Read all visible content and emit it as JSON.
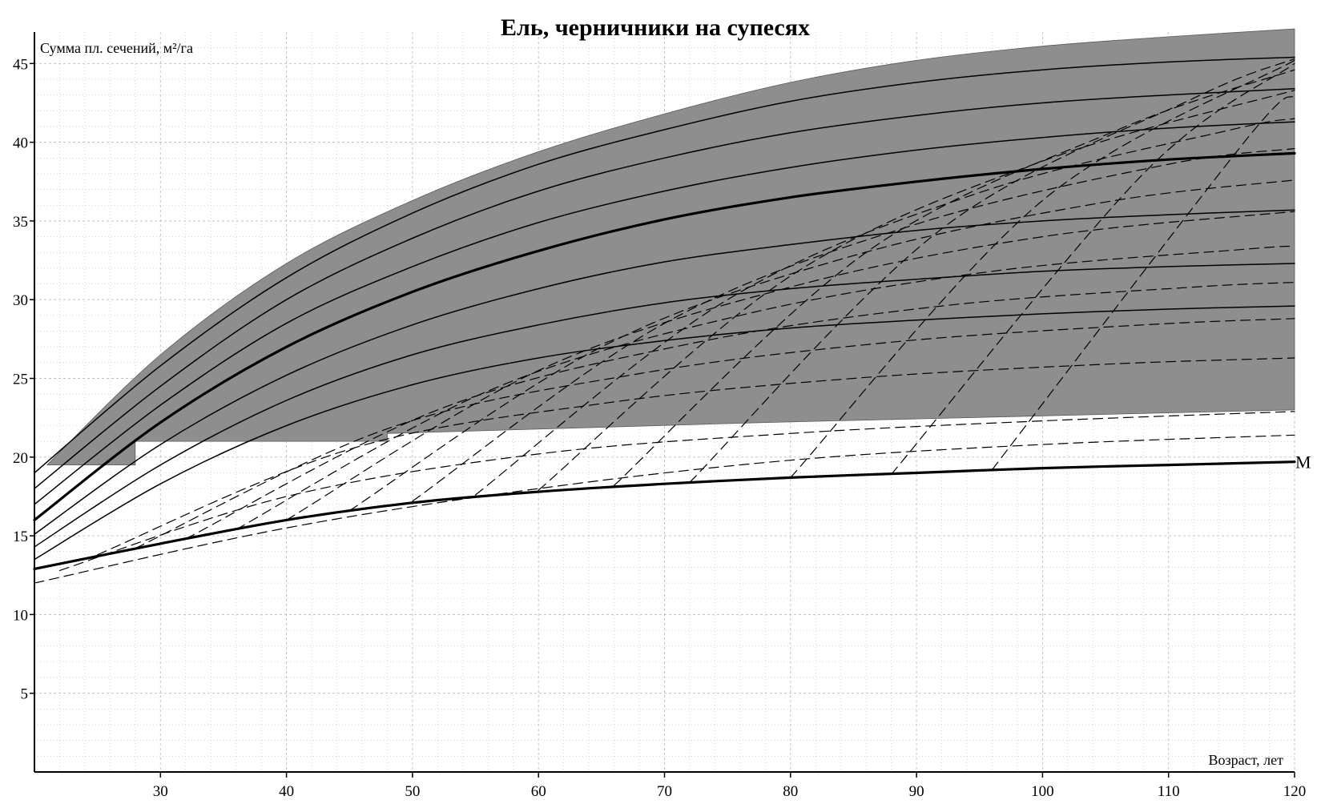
{
  "chart_data": {
    "type": "line",
    "title": "Ель, черничники на супесях",
    "ylabel": "Сумма пл. сечений, м²/га",
    "xlabel": "Возраст, лет",
    "xlim": [
      20,
      120
    ],
    "ylim": [
      0,
      47
    ],
    "x_ticks": [
      30,
      40,
      50,
      60,
      70,
      80,
      90,
      100,
      110,
      120
    ],
    "y_ticks": [
      5,
      10,
      15,
      20,
      25,
      30,
      35,
      40,
      45
    ],
    "grid": true,
    "colors": {
      "shaded_zone": "#8e8e8e",
      "lines": "#000000",
      "grid": "#bdbdbd"
    },
    "shaded_zone": {
      "upper": {
        "x": [
          21,
          30,
          40,
          50,
          60,
          70,
          80,
          90,
          100,
          110,
          120
        ],
        "y": [
          19.5,
          26.5,
          32.3,
          36.3,
          39.4,
          41.8,
          43.8,
          45.2,
          46.1,
          46.7,
          47.2
        ]
      },
      "lower": {
        "x": [
          21,
          28,
          28,
          48,
          48,
          78,
          120
        ],
        "y": [
          19.5,
          19.5,
          21.0,
          21.0,
          21.5,
          22.2,
          23.0
        ]
      }
    },
    "series": [
      {
        "name": "M",
        "style": "thick",
        "x": [
          20,
          30,
          40,
          50,
          60,
          70,
          80,
          90,
          100,
          110,
          120
        ],
        "y": [
          12.9,
          14.5,
          16.0,
          17.1,
          17.8,
          18.3,
          18.7,
          19.0,
          19.3,
          19.5,
          19.7
        ]
      },
      {
        "style": "thick",
        "x": [
          20,
          30,
          40,
          50,
          60,
          70,
          80,
          90,
          100,
          110,
          120
        ],
        "y": [
          16.0,
          22.2,
          27.0,
          30.5,
          33.1,
          35.1,
          36.5,
          37.5,
          38.3,
          38.9,
          39.3
        ]
      },
      {
        "style": "solid",
        "x": [
          20,
          30,
          40,
          50,
          60,
          70,
          80,
          90,
          100,
          110,
          120
        ],
        "y": [
          13.5,
          18.3,
          22.0,
          24.6,
          26.3,
          27.4,
          28.2,
          28.7,
          29.1,
          29.4,
          29.6
        ]
      },
      {
        "style": "solid",
        "x": [
          20,
          30,
          40,
          50,
          60,
          70,
          80,
          90,
          100,
          110,
          120
        ],
        "y": [
          14.3,
          19.5,
          23.6,
          26.5,
          28.4,
          29.8,
          30.7,
          31.3,
          31.8,
          32.1,
          32.3
        ]
      },
      {
        "style": "solid",
        "x": [
          20,
          30,
          40,
          50,
          60,
          70,
          80,
          90,
          100,
          110,
          120
        ],
        "y": [
          15.1,
          20.8,
          25.2,
          28.4,
          30.7,
          32.4,
          33.5,
          34.4,
          35.0,
          35.4,
          35.7
        ]
      },
      {
        "style": "solid",
        "x": [
          20,
          30,
          40,
          50,
          60,
          70,
          80,
          90,
          100,
          110,
          120
        ],
        "y": [
          17.0,
          23.3,
          28.5,
          32.1,
          34.9,
          36.9,
          38.4,
          39.5,
          40.3,
          40.9,
          41.3
        ]
      },
      {
        "style": "solid",
        "x": [
          20,
          30,
          40,
          50,
          60,
          70,
          80,
          90,
          100,
          110,
          120
        ],
        "y": [
          18.0,
          24.5,
          30.0,
          33.9,
          36.9,
          39.0,
          40.6,
          41.7,
          42.5,
          43.0,
          43.4
        ]
      },
      {
        "style": "solid",
        "x": [
          20,
          30,
          40,
          50,
          60,
          70,
          80,
          90,
          100,
          110,
          120
        ],
        "y": [
          19.0,
          25.8,
          31.4,
          35.5,
          38.6,
          40.8,
          42.6,
          43.8,
          44.6,
          45.1,
          45.4
        ]
      },
      {
        "style": "dashed",
        "x": [
          20,
          40,
          60,
          80,
          100,
          120
        ],
        "y": [
          12.0,
          15.5,
          18.0,
          19.8,
          20.8,
          21.4
        ]
      },
      {
        "style": "dashed",
        "x": [
          22,
          40,
          60,
          80,
          100,
          120
        ],
        "y": [
          12.8,
          17.5,
          20.2,
          21.5,
          22.3,
          22.9
        ]
      },
      {
        "style": "dashed",
        "x": [
          25,
          45,
          65,
          85,
          105,
          120
        ],
        "y": [
          13.8,
          20.5,
          23.4,
          25.0,
          25.9,
          26.3
        ]
      },
      {
        "style": "dashed",
        "x": [
          28,
          48,
          68,
          88,
          108,
          120
        ],
        "y": [
          14.2,
          21.8,
          25.3,
          27.3,
          28.4,
          28.8
        ]
      },
      {
        "style": "dashed",
        "x": [
          32,
          52,
          72,
          92,
          112,
          120
        ],
        "y": [
          14.8,
          23.0,
          27.2,
          29.6,
          30.8,
          31.1
        ]
      },
      {
        "style": "dashed",
        "x": [
          36,
          56,
          76,
          96,
          116,
          120
        ],
        "y": [
          15.4,
          24.2,
          29.0,
          31.8,
          33.2,
          33.4
        ]
      },
      {
        "style": "dashed",
        "x": [
          40,
          60,
          80,
          100,
          120
        ],
        "y": [
          16.0,
          25.5,
          30.8,
          34.0,
          35.6
        ]
      },
      {
        "style": "dashed",
        "x": [
          45,
          65,
          85,
          105,
          120
        ],
        "y": [
          16.6,
          27.0,
          32.8,
          36.2,
          37.6
        ]
      },
      {
        "style": "dashed",
        "x": [
          50,
          70,
          90,
          110,
          120
        ],
        "y": [
          17.2,
          28.5,
          34.8,
          38.6,
          39.6
        ]
      },
      {
        "style": "dashed",
        "x": [
          55,
          75,
          95,
          115,
          120
        ],
        "y": [
          17.6,
          30.0,
          36.8,
          40.8,
          41.5
        ]
      },
      {
        "style": "dashed",
        "x": [
          60,
          80,
          100,
          120
        ],
        "y": [
          17.9,
          31.5,
          38.8,
          43.3
        ]
      },
      {
        "style": "dashed",
        "x": [
          66,
          86,
          106,
          120
        ],
        "y": [
          18.2,
          33.0,
          40.8,
          44.6
        ]
      },
      {
        "style": "dashed",
        "x": [
          72,
          92,
          112,
          120
        ],
        "y": [
          18.4,
          34.5,
          42.8,
          45.3
        ]
      },
      {
        "style": "dashed",
        "x": [
          80,
          100,
          120
        ],
        "y": [
          18.7,
          36.3,
          45.2
        ]
      },
      {
        "style": "dashed",
        "x": [
          88,
          108,
          120
        ],
        "y": [
          18.9,
          38.0,
          45.0
        ]
      },
      {
        "style": "dashed",
        "x": [
          96,
          116,
          120
        ],
        "y": [
          19.2,
          40.0,
          43.0
        ]
      }
    ]
  }
}
